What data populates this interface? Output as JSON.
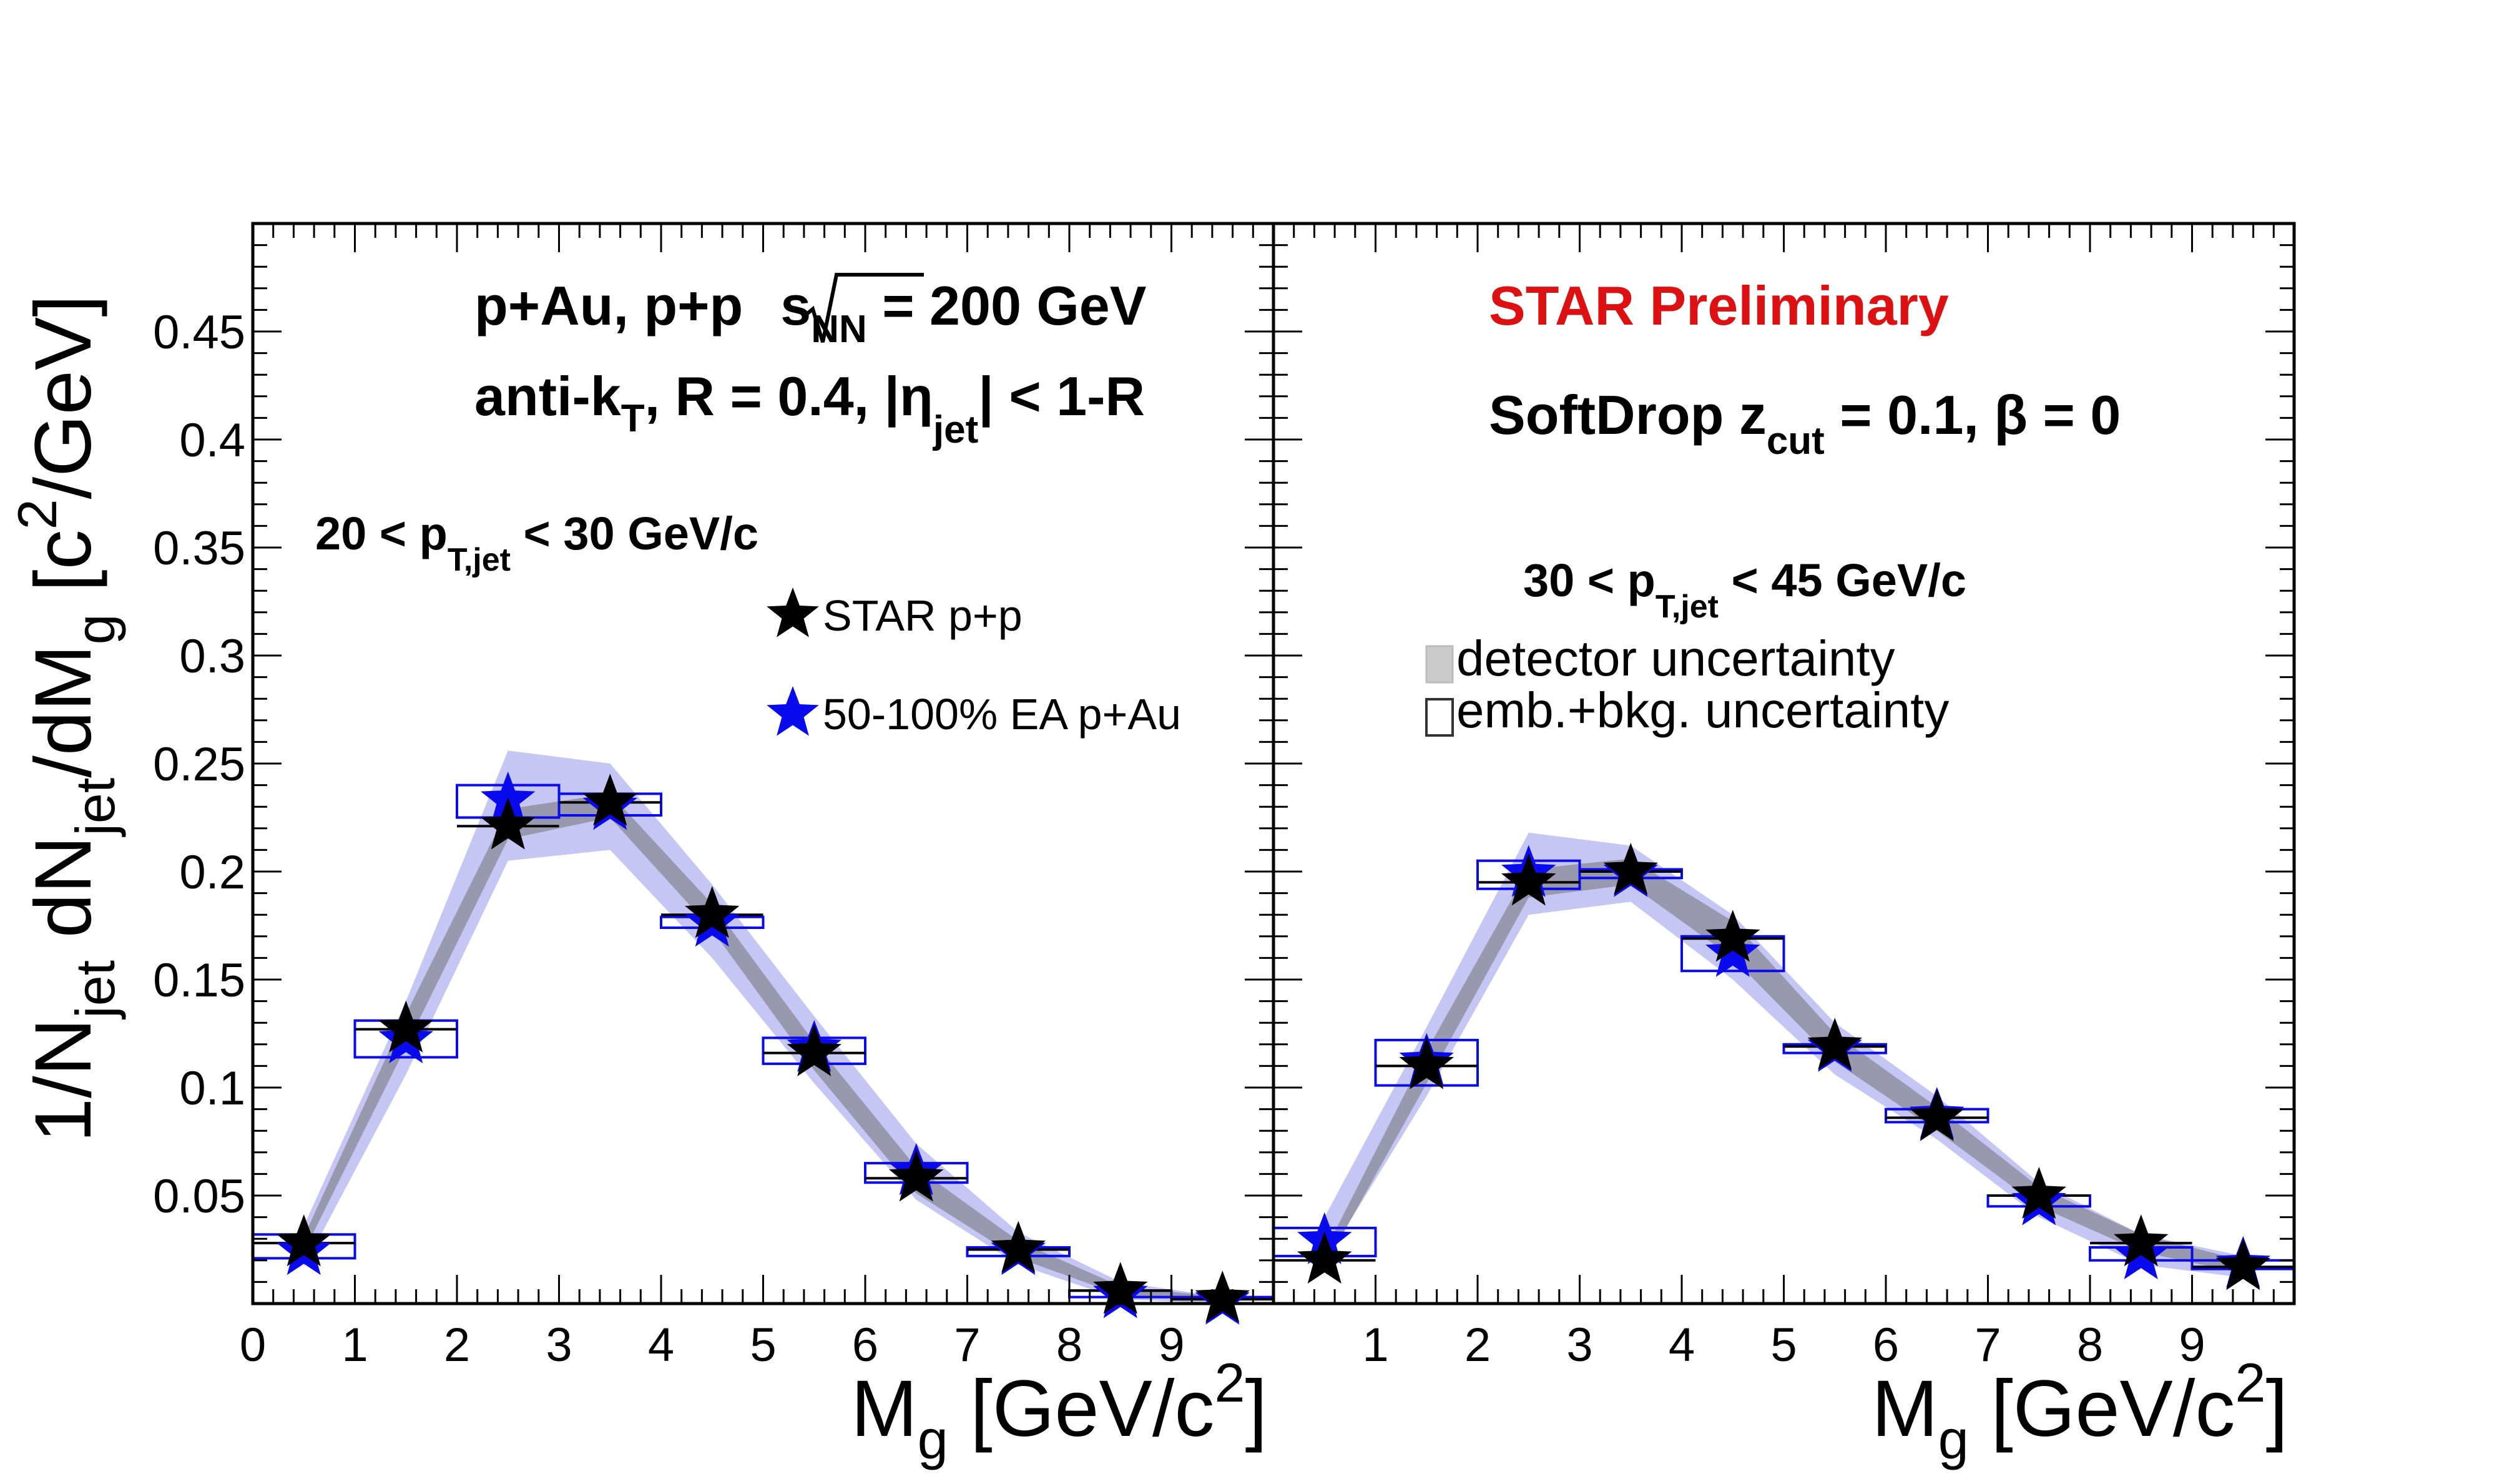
{
  "figure": {
    "ylabel": {
      "pre": "1/N",
      "sub1": "jet",
      "mid": " dN",
      "sub2": "jet",
      "mid2": "/dM",
      "sub3": "g",
      "post": " [c",
      "sup": "2",
      "post2": "/GeV]"
    },
    "xlabel": {
      "pre": "M",
      "sub": "g",
      "mid": " [GeV/c",
      "sup": "2",
      "post": "]"
    },
    "collision": {
      "pre": "p+Au, p+p",
      "sqrt": "s",
      "sub": "NN",
      "post": " = 200 GeV"
    },
    "jetdef": {
      "pre": "anti-k",
      "sub1": "T",
      "mid": ", R = 0.4, |η",
      "sub2": "jet",
      "post": "| < 1-R"
    },
    "preliminary": "STAR Preliminary",
    "softdrop": {
      "pre": "SoftDrop z",
      "sub": "cut",
      "mid": " = 0.1,  ",
      "beta": "β = 0"
    },
    "legend": {
      "pp": "STAR p+p",
      "pau": "50-100% EA p+Au",
      "det": "detector uncertainty",
      "emb": "emb.+bkg. uncertainty"
    },
    "colors": {
      "pp": "#000000",
      "pau": "#0a0aee",
      "pp_band": "#8f8fa2",
      "pau_band": "#b3b3f0",
      "prelim": "#dd1111"
    }
  },
  "chart_data": [
    {
      "type": "scatter",
      "panel": "left",
      "range_label": {
        "pre": "20 < p",
        "sub": "T,jet",
        "post": " < 30 GeV/c"
      },
      "xlim": [
        0,
        10
      ],
      "ylim": [
        0,
        0.5
      ],
      "x_ticks": [
        "0",
        "1",
        "2",
        "3",
        "4",
        "5",
        "6",
        "7",
        "8",
        "9"
      ],
      "y_ticks": [
        "0.05",
        "0.1",
        "0.15",
        "0.2",
        "0.25",
        "0.3",
        "0.35",
        "0.4",
        "0.45"
      ],
      "x": [
        0.5,
        1.5,
        2.5,
        3.5,
        4.5,
        5.5,
        6.5,
        7.5,
        8.5,
        9.5
      ],
      "series": [
        {
          "name": "STAR p+p",
          "values": [
            0.028,
            0.127,
            0.221,
            0.232,
            0.18,
            0.116,
            0.058,
            0.025,
            0.006,
            0.002
          ]
        },
        {
          "name": "50-100% EA p+Au",
          "values": [
            0.024,
            0.122,
            0.233,
            0.23,
            0.176,
            0.118,
            0.061,
            0.024,
            0.004,
            0.001
          ]
        }
      ],
      "pau_box_lo": [
        0.021,
        0.114,
        0.225,
        0.226,
        0.174,
        0.111,
        0.056,
        0.022,
        0.003,
        0.0
      ],
      "pau_box_hi": [
        0.032,
        0.131,
        0.24,
        0.236,
        0.179,
        0.123,
        0.065,
        0.026,
        0.006,
        0.003
      ],
      "pp_band_lo": [
        0.024,
        0.119,
        0.215,
        0.225,
        0.173,
        0.108,
        0.051,
        0.021,
        0.004,
        0.001
      ],
      "pp_band_hi": [
        0.031,
        0.134,
        0.229,
        0.236,
        0.185,
        0.121,
        0.063,
        0.029,
        0.008,
        0.003
      ],
      "pau_band_lo": [
        0.017,
        0.106,
        0.205,
        0.21,
        0.16,
        0.102,
        0.048,
        0.018,
        0.002,
        0.0
      ],
      "pau_band_hi": [
        0.036,
        0.14,
        0.256,
        0.25,
        0.194,
        0.133,
        0.074,
        0.033,
        0.01,
        0.003
      ]
    },
    {
      "type": "scatter",
      "panel": "right",
      "range_label": {
        "pre": "30 < p",
        "sub": "T,jet",
        "post": " < 45 GeV/c"
      },
      "xlim": [
        0,
        10
      ],
      "ylim": [
        0,
        0.5
      ],
      "x_ticks": [
        "1",
        "2",
        "3",
        "4",
        "5",
        "6",
        "7",
        "8",
        "9"
      ],
      "x": [
        0.5,
        1.5,
        2.5,
        3.5,
        4.5,
        5.5,
        6.5,
        7.5,
        8.5,
        9.5
      ],
      "series": [
        {
          "name": "STAR p+p",
          "values": [
            0.02,
            0.11,
            0.195,
            0.2,
            0.169,
            0.119,
            0.086,
            0.05,
            0.028,
            0.017
          ]
        },
        {
          "name": "50-100% EA p+Au",
          "values": [
            0.029,
            0.112,
            0.199,
            0.199,
            0.162,
            0.118,
            0.087,
            0.047,
            0.022,
            0.018
          ]
        }
      ],
      "pau_box_lo": [
        0.022,
        0.101,
        0.192,
        0.197,
        0.154,
        0.116,
        0.084,
        0.045,
        0.02,
        0.016
      ],
      "pau_box_hi": [
        0.035,
        0.122,
        0.205,
        0.201,
        0.17,
        0.12,
        0.09,
        0.05,
        0.026,
        0.02
      ],
      "pp_band_lo": [
        0.017,
        0.102,
        0.188,
        0.194,
        0.16,
        0.112,
        0.08,
        0.045,
        0.024,
        0.014
      ],
      "pp_band_hi": [
        0.024,
        0.117,
        0.201,
        0.206,
        0.177,
        0.125,
        0.091,
        0.054,
        0.032,
        0.02
      ],
      "pau_band_lo": [
        0.019,
        0.096,
        0.18,
        0.186,
        0.15,
        0.106,
        0.076,
        0.04,
        0.018,
        0.012
      ],
      "pau_band_hi": [
        0.04,
        0.128,
        0.218,
        0.212,
        0.18,
        0.13,
        0.096,
        0.056,
        0.032,
        0.022
      ]
    }
  ]
}
